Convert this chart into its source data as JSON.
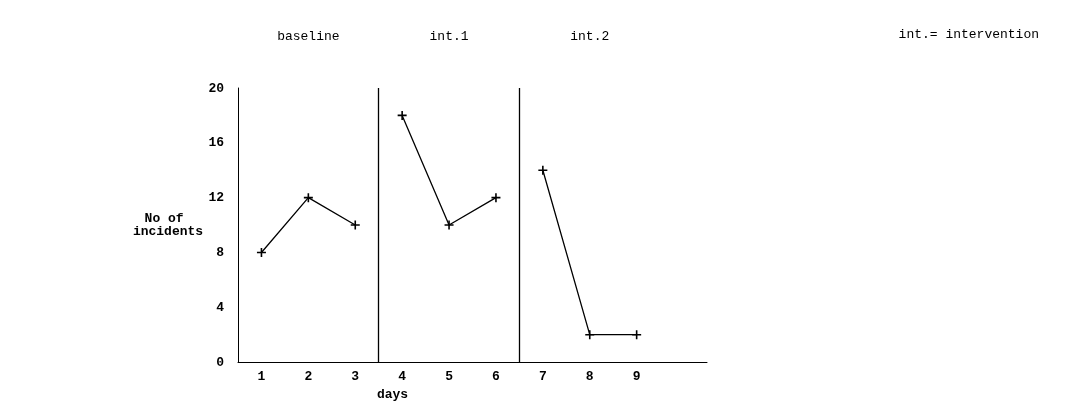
{
  "chart_data": {
    "type": "line",
    "xlabel": "days",
    "ylabel": "No of incidents",
    "xlim": [
      0.5,
      10.5
    ],
    "xticks": [
      1,
      2,
      3,
      4,
      5,
      6,
      7,
      8,
      9
    ],
    "ylim": [
      0,
      20
    ],
    "yticks": [
      0,
      4,
      8,
      12,
      16,
      20
    ],
    "series": [
      {
        "color": "#000000",
        "x": [
          1,
          2,
          3
        ],
        "values": [
          8,
          12,
          10
        ]
      },
      {
        "color": "#000000",
        "x": [
          4,
          5,
          6
        ],
        "values": [
          18,
          10,
          12
        ]
      },
      {
        "color": "#000000",
        "x": [
          7,
          8,
          9
        ],
        "values": [
          14,
          2,
          2
        ]
      }
    ],
    "ref_lines": [
      {
        "axis": "x",
        "value": 3.5,
        "color": "#000000"
      },
      {
        "axis": "x",
        "value": 6.5,
        "color": "#000000"
      }
    ],
    "annotations": [
      "baseline",
      "int.1",
      "int.2",
      "int.= intervention"
    ],
    "grid": false,
    "marker": "cross",
    "line_style": "solid"
  }
}
